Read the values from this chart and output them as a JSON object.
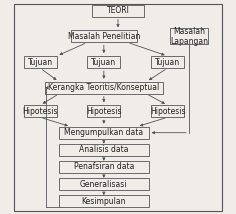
{
  "background_color": "#f0ede8",
  "box_fill": "#f0ede8",
  "box_edge": "#555555",
  "arrow_color": "#555555",
  "font_size": 5.5,
  "nodes": {
    "TEORI": [
      0.5,
      0.95,
      0.22,
      0.055
    ],
    "MasalahPenelitian": [
      0.44,
      0.83,
      0.28,
      0.055
    ],
    "MasalahLapangan": [
      0.8,
      0.83,
      0.16,
      0.075
    ],
    "Tujuan1": [
      0.17,
      0.71,
      0.14,
      0.055
    ],
    "Tujuan2": [
      0.44,
      0.71,
      0.14,
      0.055
    ],
    "Tujuan3": [
      0.71,
      0.71,
      0.14,
      0.055
    ],
    "Kerangka": [
      0.44,
      0.59,
      0.5,
      0.055
    ],
    "Hipotesis1": [
      0.17,
      0.48,
      0.14,
      0.055
    ],
    "Hipotesis2": [
      0.44,
      0.48,
      0.14,
      0.055
    ],
    "Hipotesis3": [
      0.71,
      0.48,
      0.14,
      0.055
    ],
    "Mengumpulkan": [
      0.44,
      0.38,
      0.38,
      0.055
    ],
    "Analisis": [
      0.44,
      0.3,
      0.38,
      0.055
    ],
    "Penafsiran": [
      0.44,
      0.22,
      0.38,
      0.055
    ],
    "Generalisasi": [
      0.44,
      0.14,
      0.38,
      0.055
    ],
    "Kesimpulan": [
      0.44,
      0.06,
      0.38,
      0.055
    ]
  },
  "node_labels": {
    "TEORI": "TEORI",
    "MasalahPenelitian": "Masalah Penelitian",
    "MasalahLapangan": "Masalah\nLapangan",
    "Tujuan1": "Tujuan",
    "Tujuan2": "Tujuan",
    "Tujuan3": "Tujuan",
    "Kerangka": "Kerangka Teoritis/Konseptual",
    "Hipotesis1": "Hipotesis",
    "Hipotesis2": "Hipotesis",
    "Hipotesis3": "Hipotesis",
    "Mengumpulkan": "Mengumpulkan data",
    "Analisis": "Analisis data",
    "Penafsiran": "Penafsiran data",
    "Generalisasi": "Generalisasi",
    "Kesimpulan": "Kesimpulan"
  }
}
